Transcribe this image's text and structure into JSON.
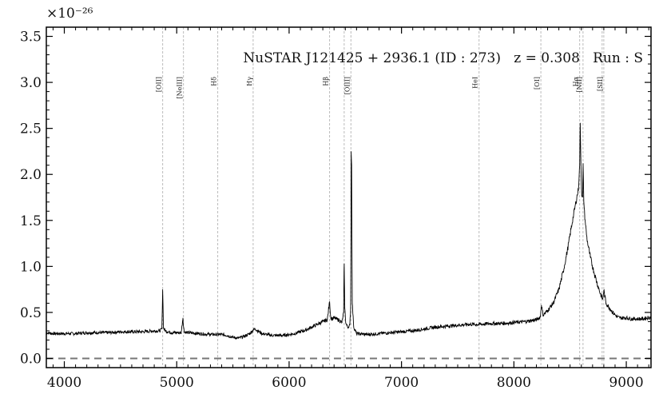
{
  "chart_data": {
    "type": "line",
    "title": "NuSTAR J121425 + 2936.1 (ID : 273)   z = 0.308   Run : S",
    "xlabel": "",
    "ylabel": "",
    "y_multiplier": "×10⁻²⁶",
    "xlim": [
      3840,
      9220
    ],
    "ylim": [
      -0.1,
      3.6
    ],
    "x_ticks": [
      4000,
      5000,
      6000,
      7000,
      8000,
      9000
    ],
    "x_tick_labels": [
      "4000",
      "5000",
      "6000",
      "7000",
      "8000",
      "9000"
    ],
    "y_ticks": [
      0.0,
      0.5,
      1.0,
      1.5,
      2.0,
      2.5,
      3.0,
      3.5
    ],
    "y_tick_labels": [
      "0.0",
      "0.5",
      "1.0",
      "1.5",
      "2.0",
      "2.5",
      "3.0",
      "3.5"
    ],
    "zero_line": 0.0,
    "emission_lines": [
      {
        "label": "[OII]",
        "x": 4875
      },
      {
        "label": "[NeIII]",
        "x": 5060
      },
      {
        "label": "Hδ",
        "x": 5365
      },
      {
        "label": "Hγ",
        "x": 5680
      },
      {
        "label": "Hβ",
        "x": 6360
      },
      {
        "label": "",
        "x": 6490
      },
      {
        "label": "[OIII]",
        "x": 6550
      },
      {
        "label": "HeI",
        "x": 7690
      },
      {
        "label": "[OI]",
        "x": 8240
      },
      {
        "label": "Hα",
        "x": 8585
      },
      {
        "label": "[NII]",
        "x": 8615
      },
      {
        "label": "",
        "x": 8785
      },
      {
        "label": "[SII]",
        "x": 8800
      }
    ],
    "series": [
      {
        "color": "#000000",
        "x": [
          3840,
          3900,
          4000,
          4100,
          4200,
          4300,
          4400,
          4500,
          4600,
          4700,
          4800,
          4850,
          4868,
          4875,
          4882,
          4900,
          4950,
          5000,
          5040,
          5055,
          5060,
          5068,
          5100,
          5200,
          5300,
          5400,
          5450,
          5500,
          5550,
          5600,
          5650,
          5680,
          5700,
          5720,
          5760,
          5800,
          5850,
          5900,
          5950,
          6000,
          6050,
          6100,
          6150,
          6200,
          6250,
          6300,
          6340,
          6360,
          6370,
          6380,
          6400,
          6440,
          6470,
          6485,
          6490,
          6495,
          6505,
          6520,
          6540,
          6548,
          6552,
          6556,
          6562,
          6575,
          6600,
          6700,
          6800,
          6900,
          7000,
          7100,
          7200,
          7300,
          7400,
          7500,
          7600,
          7690,
          7800,
          7900,
          8000,
          8100,
          8200,
          8235,
          8245,
          8260,
          8300,
          8350,
          8400,
          8440,
          8480,
          8510,
          8540,
          8560,
          8575,
          8585,
          8590,
          8598,
          8603,
          8610,
          8616,
          8622,
          8630,
          8650,
          8680,
          8710,
          8740,
          8770,
          8790,
          8800,
          8820,
          8850,
          8880,
          8920,
          8950,
          9000,
          9050,
          9100,
          9150,
          9220
        ],
        "y": [
          0.28,
          0.27,
          0.27,
          0.27,
          0.28,
          0.28,
          0.28,
          0.29,
          0.29,
          0.29,
          0.3,
          0.3,
          0.32,
          0.75,
          0.33,
          0.3,
          0.28,
          0.28,
          0.28,
          0.44,
          0.35,
          0.29,
          0.28,
          0.27,
          0.26,
          0.26,
          0.25,
          0.23,
          0.22,
          0.24,
          0.27,
          0.31,
          0.32,
          0.3,
          0.27,
          0.26,
          0.25,
          0.25,
          0.25,
          0.26,
          0.27,
          0.29,
          0.31,
          0.34,
          0.37,
          0.4,
          0.42,
          0.62,
          0.45,
          0.43,
          0.44,
          0.42,
          0.39,
          0.5,
          1.03,
          0.55,
          0.38,
          0.34,
          0.36,
          0.55,
          2.25,
          2.1,
          0.6,
          0.34,
          0.27,
          0.26,
          0.27,
          0.28,
          0.29,
          0.3,
          0.32,
          0.34,
          0.35,
          0.36,
          0.37,
          0.37,
          0.38,
          0.38,
          0.39,
          0.4,
          0.42,
          0.45,
          0.58,
          0.47,
          0.52,
          0.6,
          0.75,
          0.95,
          1.2,
          1.42,
          1.62,
          1.75,
          1.85,
          2.1,
          2.56,
          2.0,
          1.8,
          1.75,
          2.1,
          1.7,
          1.55,
          1.3,
          1.1,
          0.95,
          0.82,
          0.7,
          0.64,
          0.74,
          0.6,
          0.55,
          0.5,
          0.45,
          0.44,
          0.44,
          0.43,
          0.43,
          0.43,
          0.45
        ]
      }
    ],
    "zero_line_color": "#777777",
    "marker_line_color": "#bbbbbb"
  }
}
